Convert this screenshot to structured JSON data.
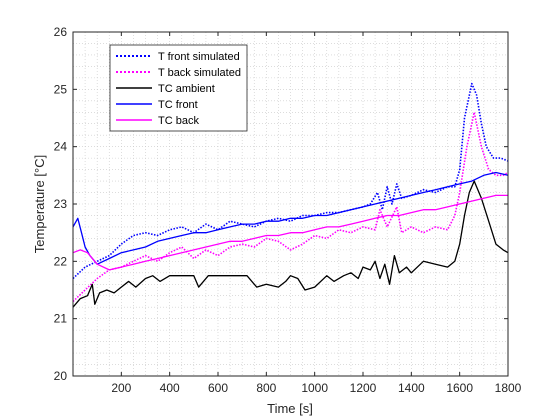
{
  "chart_data": {
    "type": "line",
    "title": "",
    "xlabel": "Time [s]",
    "ylabel": "Temperature [°C]",
    "xlim": [
      0,
      1800
    ],
    "ylim": [
      20,
      26
    ],
    "x_ticks": [
      200,
      400,
      600,
      800,
      1000,
      1200,
      1400,
      1600,
      1800
    ],
    "y_ticks": [
      20,
      21,
      22,
      23,
      24,
      25,
      26
    ],
    "grid": "minor dotted",
    "legend_position": "top-left",
    "series": [
      {
        "name": "T front simulated",
        "color": "#0000ff",
        "style": "dotted",
        "points": [
          [
            0,
            21.7
          ],
          [
            50,
            21.9
          ],
          [
            100,
            22.0
          ],
          [
            150,
            22.1
          ],
          [
            200,
            22.3
          ],
          [
            250,
            22.45
          ],
          [
            300,
            22.5
          ],
          [
            350,
            22.45
          ],
          [
            400,
            22.55
          ],
          [
            450,
            22.6
          ],
          [
            500,
            22.5
          ],
          [
            550,
            22.65
          ],
          [
            600,
            22.55
          ],
          [
            650,
            22.7
          ],
          [
            700,
            22.65
          ],
          [
            750,
            22.6
          ],
          [
            800,
            22.7
          ],
          [
            850,
            22.75
          ],
          [
            900,
            22.7
          ],
          [
            950,
            22.8
          ],
          [
            1000,
            22.8
          ],
          [
            1050,
            22.85
          ],
          [
            1100,
            22.85
          ],
          [
            1150,
            22.9
          ],
          [
            1200,
            22.95
          ],
          [
            1230,
            23.0
          ],
          [
            1260,
            23.2
          ],
          [
            1280,
            22.9
          ],
          [
            1300,
            23.3
          ],
          [
            1320,
            23.0
          ],
          [
            1340,
            23.35
          ],
          [
            1360,
            23.1
          ],
          [
            1400,
            23.15
          ],
          [
            1450,
            23.25
          ],
          [
            1500,
            23.2
          ],
          [
            1550,
            23.3
          ],
          [
            1580,
            23.3
          ],
          [
            1600,
            23.6
          ],
          [
            1620,
            24.5
          ],
          [
            1650,
            25.1
          ],
          [
            1670,
            24.9
          ],
          [
            1690,
            24.4
          ],
          [
            1710,
            24.0
          ],
          [
            1740,
            23.8
          ],
          [
            1770,
            23.8
          ],
          [
            1800,
            23.75
          ]
        ]
      },
      {
        "name": "T back simulated",
        "color": "#ff00ff",
        "style": "dotted",
        "points": [
          [
            0,
            21.3
          ],
          [
            50,
            21.5
          ],
          [
            100,
            21.7
          ],
          [
            150,
            21.85
          ],
          [
            200,
            21.9
          ],
          [
            250,
            22.0
          ],
          [
            300,
            22.1
          ],
          [
            350,
            22.0
          ],
          [
            400,
            22.15
          ],
          [
            450,
            22.25
          ],
          [
            500,
            22.05
          ],
          [
            550,
            22.2
          ],
          [
            600,
            22.1
          ],
          [
            650,
            22.25
          ],
          [
            700,
            22.3
          ],
          [
            750,
            22.25
          ],
          [
            800,
            22.4
          ],
          [
            850,
            22.35
          ],
          [
            900,
            22.2
          ],
          [
            950,
            22.3
          ],
          [
            1000,
            22.45
          ],
          [
            1050,
            22.4
          ],
          [
            1100,
            22.55
          ],
          [
            1150,
            22.5
          ],
          [
            1200,
            22.6
          ],
          [
            1250,
            22.55
          ],
          [
            1270,
            22.9
          ],
          [
            1300,
            22.6
          ],
          [
            1340,
            22.95
          ],
          [
            1360,
            22.5
          ],
          [
            1400,
            22.6
          ],
          [
            1450,
            22.5
          ],
          [
            1500,
            22.6
          ],
          [
            1550,
            22.55
          ],
          [
            1580,
            22.8
          ],
          [
            1600,
            23.2
          ],
          [
            1630,
            24.0
          ],
          [
            1660,
            24.6
          ],
          [
            1690,
            24.0
          ],
          [
            1720,
            23.6
          ],
          [
            1750,
            23.5
          ],
          [
            1780,
            23.5
          ],
          [
            1800,
            23.55
          ]
        ]
      },
      {
        "name": "TC ambient",
        "color": "#000000",
        "style": "solid",
        "points": [
          [
            0,
            21.2
          ],
          [
            30,
            21.35
          ],
          [
            60,
            21.4
          ],
          [
            80,
            21.6
          ],
          [
            90,
            21.25
          ],
          [
            110,
            21.45
          ],
          [
            140,
            21.5
          ],
          [
            170,
            21.45
          ],
          [
            200,
            21.55
          ],
          [
            230,
            21.65
          ],
          [
            260,
            21.55
          ],
          [
            300,
            21.7
          ],
          [
            330,
            21.75
          ],
          [
            360,
            21.65
          ],
          [
            400,
            21.75
          ],
          [
            450,
            21.75
          ],
          [
            500,
            21.75
          ],
          [
            520,
            21.55
          ],
          [
            560,
            21.75
          ],
          [
            620,
            21.75
          ],
          [
            680,
            21.75
          ],
          [
            720,
            21.75
          ],
          [
            760,
            21.55
          ],
          [
            800,
            21.6
          ],
          [
            850,
            21.55
          ],
          [
            880,
            21.65
          ],
          [
            900,
            21.75
          ],
          [
            930,
            21.7
          ],
          [
            960,
            21.5
          ],
          [
            1000,
            21.55
          ],
          [
            1050,
            21.75
          ],
          [
            1080,
            21.65
          ],
          [
            1120,
            21.75
          ],
          [
            1150,
            21.8
          ],
          [
            1180,
            21.7
          ],
          [
            1200,
            21.9
          ],
          [
            1230,
            21.85
          ],
          [
            1250,
            22.0
          ],
          [
            1270,
            21.7
          ],
          [
            1290,
            21.95
          ],
          [
            1310,
            21.6
          ],
          [
            1330,
            22.1
          ],
          [
            1350,
            21.8
          ],
          [
            1380,
            21.9
          ],
          [
            1400,
            21.8
          ],
          [
            1450,
            22.0
          ],
          [
            1500,
            21.95
          ],
          [
            1550,
            21.9
          ],
          [
            1580,
            22.0
          ],
          [
            1600,
            22.3
          ],
          [
            1620,
            22.8
          ],
          [
            1640,
            23.2
          ],
          [
            1660,
            23.4
          ],
          [
            1690,
            23.1
          ],
          [
            1720,
            22.7
          ],
          [
            1750,
            22.3
          ],
          [
            1780,
            22.2
          ],
          [
            1800,
            22.15
          ]
        ]
      },
      {
        "name": "TC front",
        "color": "#0000ff",
        "style": "solid",
        "points": [
          [
            0,
            22.6
          ],
          [
            20,
            22.75
          ],
          [
            35,
            22.5
          ],
          [
            50,
            22.25
          ],
          [
            70,
            22.1
          ],
          [
            100,
            21.95
          ],
          [
            150,
            22.05
          ],
          [
            200,
            22.15
          ],
          [
            250,
            22.2
          ],
          [
            300,
            22.25
          ],
          [
            350,
            22.35
          ],
          [
            400,
            22.4
          ],
          [
            450,
            22.45
          ],
          [
            500,
            22.5
          ],
          [
            550,
            22.5
          ],
          [
            600,
            22.55
          ],
          [
            650,
            22.6
          ],
          [
            700,
            22.65
          ],
          [
            750,
            22.65
          ],
          [
            800,
            22.7
          ],
          [
            850,
            22.7
          ],
          [
            900,
            22.75
          ],
          [
            950,
            22.75
          ],
          [
            1000,
            22.8
          ],
          [
            1050,
            22.8
          ],
          [
            1100,
            22.85
          ],
          [
            1150,
            22.9
          ],
          [
            1200,
            22.95
          ],
          [
            1250,
            23.0
          ],
          [
            1300,
            23.05
          ],
          [
            1350,
            23.1
          ],
          [
            1400,
            23.15
          ],
          [
            1450,
            23.2
          ],
          [
            1500,
            23.25
          ],
          [
            1550,
            23.3
          ],
          [
            1600,
            23.35
          ],
          [
            1650,
            23.4
          ],
          [
            1700,
            23.5
          ],
          [
            1750,
            23.55
          ],
          [
            1800,
            23.5
          ]
        ]
      },
      {
        "name": "TC back",
        "color": "#ff00ff",
        "style": "solid",
        "points": [
          [
            0,
            22.15
          ],
          [
            30,
            22.2
          ],
          [
            60,
            22.15
          ],
          [
            100,
            21.95
          ],
          [
            150,
            21.85
          ],
          [
            200,
            21.9
          ],
          [
            250,
            21.95
          ],
          [
            300,
            22.0
          ],
          [
            350,
            22.05
          ],
          [
            400,
            22.1
          ],
          [
            450,
            22.15
          ],
          [
            500,
            22.2
          ],
          [
            550,
            22.25
          ],
          [
            600,
            22.3
          ],
          [
            650,
            22.35
          ],
          [
            700,
            22.35
          ],
          [
            750,
            22.4
          ],
          [
            800,
            22.45
          ],
          [
            850,
            22.45
          ],
          [
            900,
            22.5
          ],
          [
            950,
            22.5
          ],
          [
            1000,
            22.55
          ],
          [
            1050,
            22.6
          ],
          [
            1100,
            22.6
          ],
          [
            1150,
            22.65
          ],
          [
            1200,
            22.7
          ],
          [
            1250,
            22.75
          ],
          [
            1300,
            22.8
          ],
          [
            1350,
            22.8
          ],
          [
            1400,
            22.85
          ],
          [
            1450,
            22.9
          ],
          [
            1500,
            22.9
          ],
          [
            1550,
            22.95
          ],
          [
            1600,
            23.0
          ],
          [
            1650,
            23.05
          ],
          [
            1700,
            23.1
          ],
          [
            1750,
            23.15
          ],
          [
            1800,
            23.15
          ]
        ]
      }
    ]
  }
}
